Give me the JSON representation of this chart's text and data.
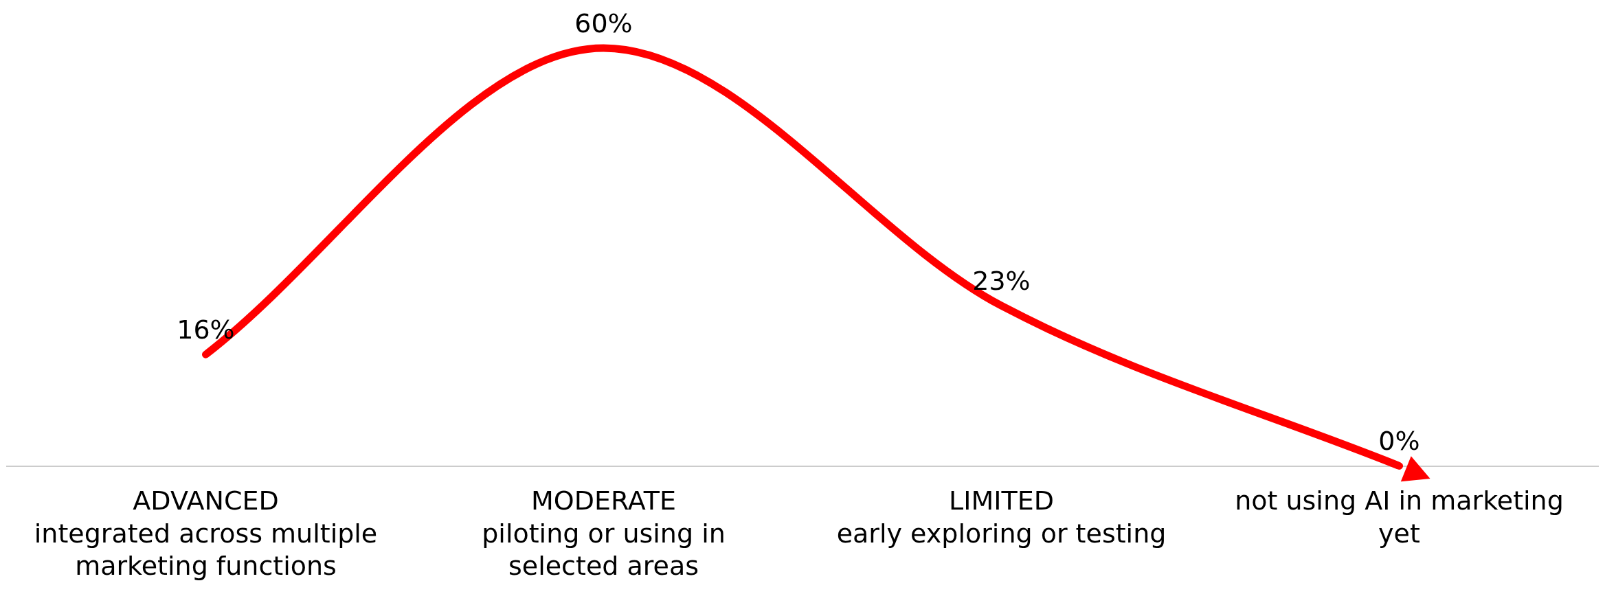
{
  "chart_data": {
    "type": "line",
    "categories": [
      "ADVANCED\nintegrated across multiple\nmarketing functions",
      "MODERATE\npiloting or using in\nselected areas",
      "LIMITED\nearly exploring or testing",
      "not using AI in marketing\nyet"
    ],
    "series": [
      {
        "color": "#ff0000",
        "values": [
          16,
          60,
          23,
          0
        ],
        "value_labels": [
          "16%",
          "60%",
          "23%",
          "0%"
        ]
      }
    ],
    "marker": "none",
    "line_style": "solid",
    "grid": false,
    "legend": false
  }
}
